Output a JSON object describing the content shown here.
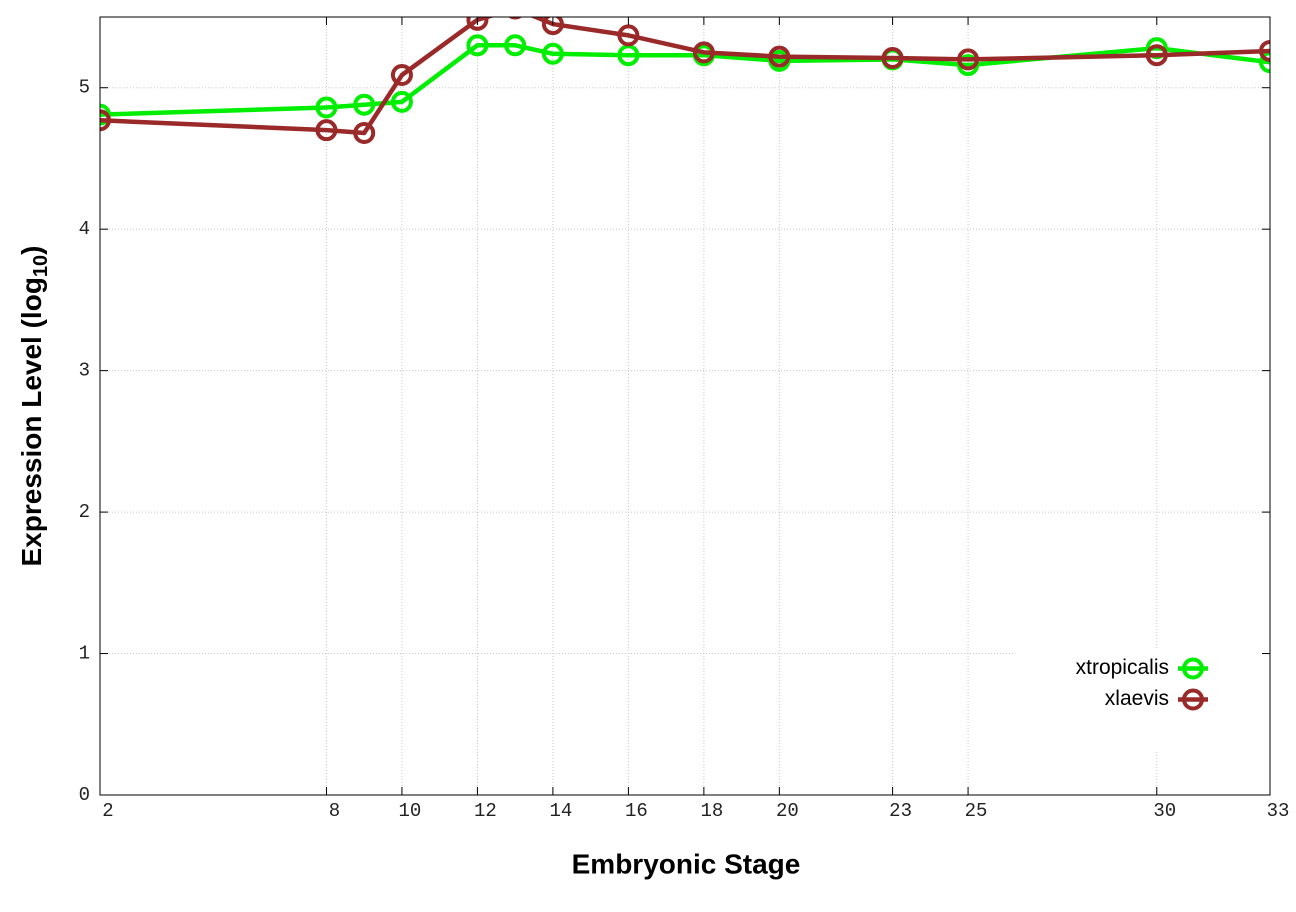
{
  "chart_data": {
    "type": "line",
    "xlabel": "Embryonic Stage",
    "ylabel": {
      "text": "Expression Level (log",
      "sub": "10",
      "close": ")"
    },
    "xlim": [
      2,
      33
    ],
    "xticks": [
      2,
      8,
      10,
      12,
      14,
      16,
      18,
      20,
      23,
      25,
      30,
      33
    ],
    "ylim": [
      0,
      5.5
    ],
    "yticks": [
      0,
      1,
      2,
      3,
      4,
      5
    ],
    "grid": true,
    "legend": "bottom-right",
    "x": [
      2,
      8,
      9,
      10,
      12,
      13,
      14,
      16,
      18,
      20,
      23,
      25,
      30,
      33
    ],
    "series": [
      {
        "name": "xtropicalis",
        "color": "#00ee00",
        "values": [
          4.81,
          4.86,
          4.88,
          4.9,
          5.3,
          5.3,
          5.24,
          5.23,
          5.23,
          5.19,
          5.2,
          5.16,
          5.28,
          5.18
        ]
      },
      {
        "name": "xlaevis",
        "color": "#9a2a2a",
        "values": [
          4.77,
          4.7,
          4.68,
          5.09,
          5.48,
          5.56,
          5.45,
          5.37,
          5.25,
          5.22,
          5.21,
          5.2,
          5.23,
          5.26
        ]
      }
    ]
  }
}
